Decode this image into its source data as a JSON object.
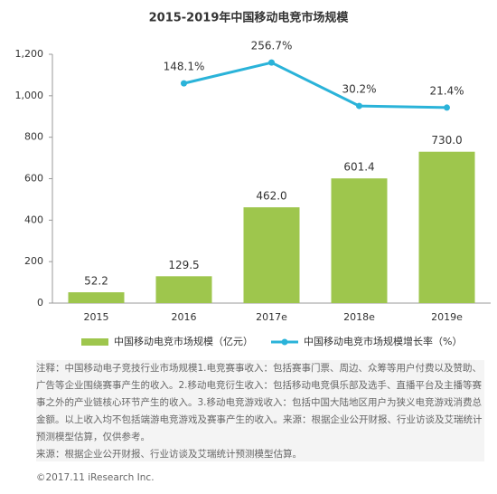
{
  "chart_data": {
    "type": "bar_line",
    "title": "2015-2019年中国移动电竞市场规模",
    "categories": [
      "2015",
      "2016",
      "2017e",
      "2018e",
      "2019e"
    ],
    "series": [
      {
        "name": "中国移动电竞市场规模（亿元）",
        "type": "bar",
        "color": "#9ec64d",
        "values": [
          52.2,
          129.5,
          462,
          601.4,
          730
        ],
        "value_labels": [
          "52.2",
          "129.5",
          "462.0",
          "601.4",
          "730.0"
        ]
      },
      {
        "name": "中国移动电竞市场规模增长率（%）",
        "type": "line",
        "axis": "y2",
        "color": "#2ab3d9",
        "values": [
          null,
          148.1,
          256.7,
          30.2,
          21.4
        ],
        "value_labels": [
          null,
          "148.1%",
          "256.7%",
          "30.2%",
          "21.4%"
        ]
      }
    ],
    "ylim": [
      0,
      1200
    ],
    "yticks": [
      0,
      200,
      400,
      600,
      800,
      {
        "value": 1000,
        "label": "1,000"
      },
      {
        "value": 1200,
        "label": "1,200"
      }
    ],
    "y2lim": [
      -1000,
      300
    ],
    "grid": false,
    "legend": "bottom",
    "notes": [
      "注释：中国移动电子竞技行业市场规模1.电竞赛事收入：包括赛事门票、周边、众筹等用户付费以及赞助、广告等企业围绕赛事产生的收入。2.移动电竞衍生收入：包括移动电竞俱乐部及选手、直播平台及主播等赛事之外的产业链核心环节产生的收入。3.移动电竞游戏收入：包括中国大陆地区用户为狭义电竞游戏消费总金额。以上收入均不包括端游电竞游戏及赛事产生的收入。来源：根据企业公开财报、行业访谈及艾瑞统计预测模型估算，仅供参考。",
      "来源：根据企业公开财报、行业访谈及艾瑞统计预测模型估算。"
    ],
    "footer": "©2017.11 iResearch Inc."
  }
}
